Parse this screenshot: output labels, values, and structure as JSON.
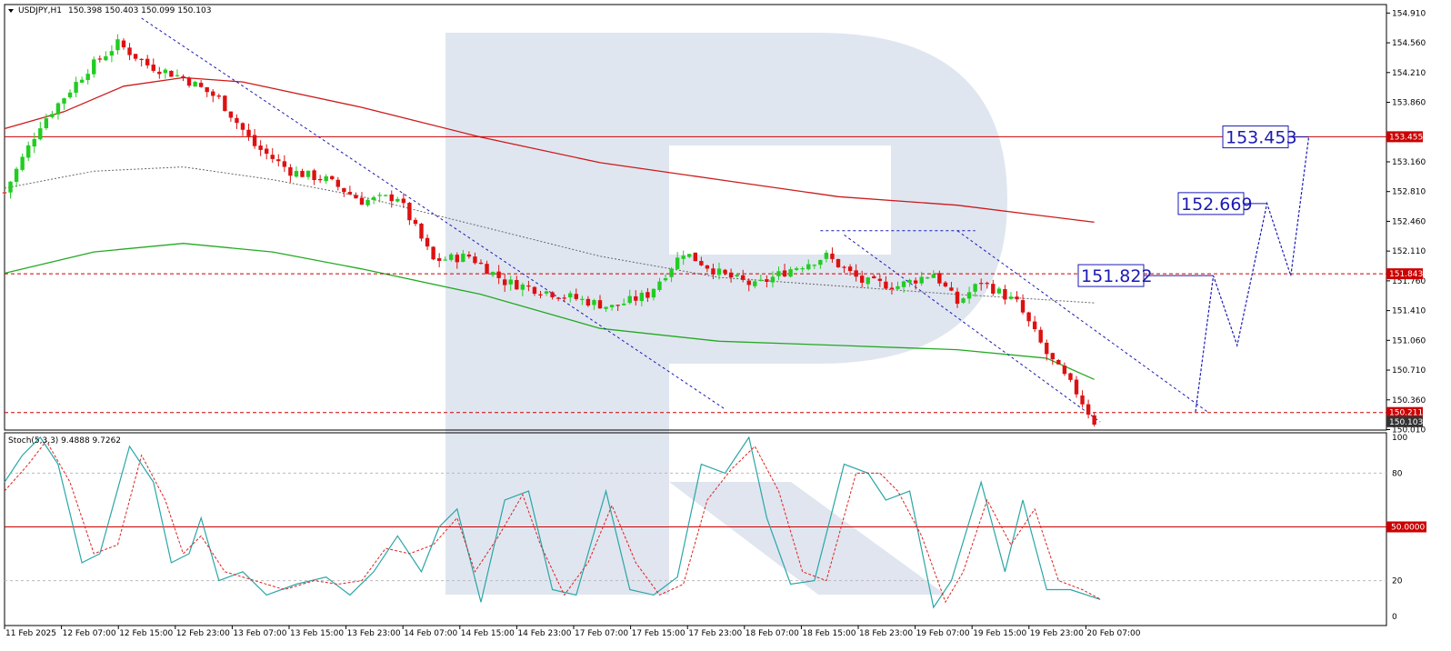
{
  "header": {
    "symbol": "USDJPY,H1",
    "ohlc": "150.398 150.403 150.099 150.103"
  },
  "stoch": {
    "label": "Stoch(5,3,3) 9.4888 9.7262",
    "level_50_tag": "50.0000",
    "scale_labels": [
      "100",
      "80",
      "50",
      "20",
      "0"
    ]
  },
  "price_scale": [
    "154.910",
    "154.560",
    "154.210",
    "153.860",
    "153.160",
    "152.810",
    "152.460",
    "152.110",
    "151.760",
    "151.410",
    "151.060",
    "150.710",
    "150.360",
    "150.010"
  ],
  "time_labels": [
    "11 Feb 2025",
    "12 Feb 07:00",
    "12 Feb 15:00",
    "12 Feb 23:00",
    "13 Feb 07:00",
    "13 Feb 15:00",
    "13 Feb 23:00",
    "14 Feb 07:00",
    "14 Feb 15:00",
    "14 Feb 23:00",
    "17 Feb 07:00",
    "17 Feb 15:00",
    "17 Feb 23:00",
    "18 Feb 07:00",
    "18 Feb 15:00",
    "18 Feb 23:00",
    "19 Feb 07:00",
    "19 Feb 15:00",
    "19 Feb 23:00",
    "20 Feb 07:00"
  ],
  "tags": {
    "level_153": "153.455",
    "level_151": "151.843",
    "level_150a": "150.211",
    "current": "150.103"
  },
  "forecast_labels": {
    "t1": "151.822",
    "t2": "152.669",
    "t3": "153.453"
  },
  "colors": {
    "bull": "#22cc22",
    "bear": "#dd1111",
    "level": "#cc0000",
    "ma_slow": "#cc1a1a",
    "ma_mid": "#22aa22",
    "forecast": "#1a1ab4",
    "stoch_main": "#2aa6a6",
    "stoch_signal": "#dd2222"
  },
  "chart_data": {
    "type": "candlestick",
    "symbol": "USDJPY",
    "timeframe": "H1",
    "ylim": [
      150.01,
      155.01
    ],
    "levels": [
      153.455,
      151.843,
      150.211
    ],
    "anchors": [
      {
        "i": 0,
        "p": 152.8
      },
      {
        "i": 6,
        "p": 153.6
      },
      {
        "i": 14,
        "p": 154.25
      },
      {
        "i": 19,
        "p": 154.55
      },
      {
        "i": 24,
        "p": 154.3
      },
      {
        "i": 30,
        "p": 154.15
      },
      {
        "i": 36,
        "p": 153.9
      },
      {
        "i": 42,
        "p": 153.35
      },
      {
        "i": 48,
        "p": 153.05
      },
      {
        "i": 54,
        "p": 152.95
      },
      {
        "i": 60,
        "p": 152.7
      },
      {
        "i": 66,
        "p": 152.75
      },
      {
        "i": 72,
        "p": 152.0
      },
      {
        "i": 78,
        "p": 152.05
      },
      {
        "i": 84,
        "p": 151.75
      },
      {
        "i": 90,
        "p": 151.65
      },
      {
        "i": 96,
        "p": 151.55
      },
      {
        "i": 102,
        "p": 151.45
      },
      {
        "i": 108,
        "p": 151.6
      },
      {
        "i": 114,
        "p": 152.1
      },
      {
        "i": 120,
        "p": 151.85
      },
      {
        "i": 126,
        "p": 151.7
      },
      {
        "i": 132,
        "p": 151.9
      },
      {
        "i": 138,
        "p": 152.05
      },
      {
        "i": 144,
        "p": 151.75
      },
      {
        "i": 150,
        "p": 151.7
      },
      {
        "i": 156,
        "p": 151.85
      },
      {
        "i": 160,
        "p": 151.5
      },
      {
        "i": 164,
        "p": 151.75
      },
      {
        "i": 170,
        "p": 151.5
      },
      {
        "i": 175,
        "p": 150.9
      },
      {
        "i": 180,
        "p": 150.45
      },
      {
        "i": 183,
        "p": 150.1
      }
    ],
    "ma_slow": [
      {
        "i": 0,
        "p": 153.55
      },
      {
        "i": 10,
        "p": 153.75
      },
      {
        "i": 20,
        "p": 154.05
      },
      {
        "i": 30,
        "p": 154.15
      },
      {
        "i": 40,
        "p": 154.1
      },
      {
        "i": 60,
        "p": 153.8
      },
      {
        "i": 80,
        "p": 153.45
      },
      {
        "i": 100,
        "p": 153.15
      },
      {
        "i": 120,
        "p": 152.95
      },
      {
        "i": 140,
        "p": 152.75
      },
      {
        "i": 160,
        "p": 152.65
      },
      {
        "i": 183,
        "p": 152.45
      }
    ],
    "ma_dotted": [
      {
        "i": 0,
        "p": 152.85
      },
      {
        "i": 15,
        "p": 153.05
      },
      {
        "i": 30,
        "p": 153.1
      },
      {
        "i": 45,
        "p": 152.95
      },
      {
        "i": 60,
        "p": 152.75
      },
      {
        "i": 80,
        "p": 152.4
      },
      {
        "i": 100,
        "p": 152.05
      },
      {
        "i": 120,
        "p": 151.8
      },
      {
        "i": 140,
        "p": 151.7
      },
      {
        "i": 160,
        "p": 151.6
      },
      {
        "i": 172,
        "p": 151.55
      },
      {
        "i": 183,
        "p": 151.5
      }
    ],
    "ma_mid": [
      {
        "i": 0,
        "p": 151.85
      },
      {
        "i": 15,
        "p": 152.1
      },
      {
        "i": 30,
        "p": 152.2
      },
      {
        "i": 45,
        "p": 152.1
      },
      {
        "i": 60,
        "p": 151.9
      },
      {
        "i": 80,
        "p": 151.6
      },
      {
        "i": 100,
        "p": 151.2
      },
      {
        "i": 120,
        "p": 151.05
      },
      {
        "i": 140,
        "p": 151.0
      },
      {
        "i": 160,
        "p": 150.95
      },
      {
        "i": 175,
        "p": 150.85
      },
      {
        "i": 183,
        "p": 150.6
      }
    ],
    "trend_lines": [
      {
        "from": {
          "i": 23,
          "p": 154.85
        },
        "to": {
          "i": 121,
          "p": 150.25
        }
      },
      {
        "from": {
          "i": 137,
          "p": 152.35
        },
        "to": {
          "i": 163,
          "p": 152.35
        }
      },
      {
        "from": {
          "i": 141,
          "p": 152.3
        },
        "to": {
          "i": 184,
          "p": 150.1
        }
      },
      {
        "from": {
          "i": 160,
          "p": 152.35
        },
        "to": {
          "i": 202,
          "p": 150.22
        }
      }
    ],
    "forecast_path": [
      {
        "i": 200,
        "p": 150.22
      },
      {
        "i": 203,
        "p": 151.82
      },
      {
        "i": 207,
        "p": 151.0
      },
      {
        "i": 212,
        "p": 152.67
      },
      {
        "i": 216,
        "p": 151.82
      },
      {
        "i": 219,
        "p": 153.45
      }
    ],
    "forecast_levels": [
      151.822,
      152.669,
      153.453
    ],
    "stochastic": {
      "params": "5,3,3",
      "main_last": 9.4888,
      "signal_last": 9.7262,
      "levels": [
        20,
        50,
        80
      ],
      "main": [
        {
          "i": 0,
          "v": 75
        },
        {
          "i": 3,
          "v": 90
        },
        {
          "i": 6,
          "v": 100
        },
        {
          "i": 9,
          "v": 85
        },
        {
          "i": 13,
          "v": 30
        },
        {
          "i": 16,
          "v": 35
        },
        {
          "i": 21,
          "v": 95
        },
        {
          "i": 25,
          "v": 75
        },
        {
          "i": 28,
          "v": 30
        },
        {
          "i": 31,
          "v": 35
        },
        {
          "i": 33,
          "v": 55
        },
        {
          "i": 36,
          "v": 20
        },
        {
          "i": 40,
          "v": 25
        },
        {
          "i": 44,
          "v": 12
        },
        {
          "i": 49,
          "v": 18
        },
        {
          "i": 54,
          "v": 22
        },
        {
          "i": 58,
          "v": 12
        },
        {
          "i": 62,
          "v": 25
        },
        {
          "i": 66,
          "v": 45
        },
        {
          "i": 70,
          "v": 25
        },
        {
          "i": 73,
          "v": 50
        },
        {
          "i": 76,
          "v": 60
        },
        {
          "i": 80,
          "v": 8
        },
        {
          "i": 84,
          "v": 65
        },
        {
          "i": 88,
          "v": 70
        },
        {
          "i": 92,
          "v": 15
        },
        {
          "i": 96,
          "v": 12
        },
        {
          "i": 101,
          "v": 70
        },
        {
          "i": 105,
          "v": 15
        },
        {
          "i": 109,
          "v": 12
        },
        {
          "i": 113,
          "v": 22
        },
        {
          "i": 117,
          "v": 85
        },
        {
          "i": 121,
          "v": 80
        },
        {
          "i": 125,
          "v": 100
        },
        {
          "i": 128,
          "v": 55
        },
        {
          "i": 132,
          "v": 18
        },
        {
          "i": 136,
          "v": 20
        },
        {
          "i": 141,
          "v": 85
        },
        {
          "i": 145,
          "v": 80
        },
        {
          "i": 148,
          "v": 65
        },
        {
          "i": 152,
          "v": 70
        },
        {
          "i": 156,
          "v": 5
        },
        {
          "i": 159,
          "v": 20
        },
        {
          "i": 164,
          "v": 75
        },
        {
          "i": 168,
          "v": 25
        },
        {
          "i": 171,
          "v": 65
        },
        {
          "i": 175,
          "v": 15
        },
        {
          "i": 179,
          "v": 15
        },
        {
          "i": 184,
          "v": 9.5
        }
      ],
      "signal": [
        {
          "i": 0,
          "v": 70
        },
        {
          "i": 4,
          "v": 85
        },
        {
          "i": 7,
          "v": 98
        },
        {
          "i": 11,
          "v": 75
        },
        {
          "i": 15,
          "v": 35
        },
        {
          "i": 19,
          "v": 40
        },
        {
          "i": 23,
          "v": 90
        },
        {
          "i": 27,
          "v": 65
        },
        {
          "i": 30,
          "v": 35
        },
        {
          "i": 33,
          "v": 45
        },
        {
          "i": 37,
          "v": 25
        },
        {
          "i": 42,
          "v": 20
        },
        {
          "i": 47,
          "v": 15
        },
        {
          "i": 52,
          "v": 20
        },
        {
          "i": 56,
          "v": 18
        },
        {
          "i": 60,
          "v": 20
        },
        {
          "i": 64,
          "v": 38
        },
        {
          "i": 68,
          "v": 35
        },
        {
          "i": 72,
          "v": 40
        },
        {
          "i": 76,
          "v": 55
        },
        {
          "i": 79,
          "v": 25
        },
        {
          "i": 83,
          "v": 45
        },
        {
          "i": 87,
          "v": 68
        },
        {
          "i": 90,
          "v": 40
        },
        {
          "i": 94,
          "v": 12
        },
        {
          "i": 98,
          "v": 30
        },
        {
          "i": 102,
          "v": 62
        },
        {
          "i": 106,
          "v": 30
        },
        {
          "i": 110,
          "v": 12
        },
        {
          "i": 114,
          "v": 18
        },
        {
          "i": 118,
          "v": 65
        },
        {
          "i": 122,
          "v": 82
        },
        {
          "i": 126,
          "v": 95
        },
        {
          "i": 130,
          "v": 70
        },
        {
          "i": 134,
          "v": 25
        },
        {
          "i": 138,
          "v": 20
        },
        {
          "i": 143,
          "v": 80
        },
        {
          "i": 147,
          "v": 80
        },
        {
          "i": 150,
          "v": 70
        },
        {
          "i": 154,
          "v": 45
        },
        {
          "i": 158,
          "v": 8
        },
        {
          "i": 161,
          "v": 25
        },
        {
          "i": 165,
          "v": 65
        },
        {
          "i": 169,
          "v": 40
        },
        {
          "i": 173,
          "v": 60
        },
        {
          "i": 177,
          "v": 20
        },
        {
          "i": 181,
          "v": 15
        },
        {
          "i": 184,
          "v": 9.7
        }
      ]
    }
  }
}
